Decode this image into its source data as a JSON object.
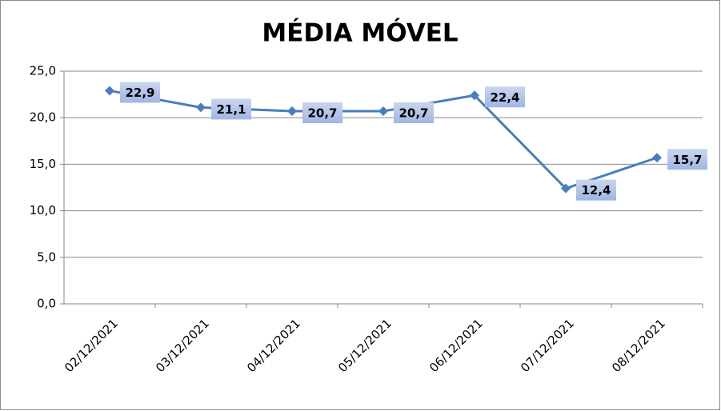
{
  "chart_data": {
    "type": "line",
    "title": "MÉDIA MÓVEL",
    "categories": [
      "02/12/2021",
      "03/12/2021",
      "04/12/2021",
      "05/12/2021",
      "06/12/2021",
      "07/12/2021",
      "08/12/2021"
    ],
    "values": [
      22.9,
      21.1,
      20.7,
      20.7,
      22.4,
      12.4,
      15.7
    ],
    "value_labels": [
      "22,9",
      "21,1",
      "20,7",
      "20,7",
      "22,4",
      "12,4",
      "15,7"
    ],
    "color": "#4a7ebb",
    "ylim": [
      0,
      25
    ],
    "yticks": [
      {
        "value": 0,
        "label": "0,0"
      },
      {
        "value": 5,
        "label": "5,0"
      },
      {
        "value": 10,
        "label": "10,0"
      },
      {
        "value": 15,
        "label": "15,0"
      },
      {
        "value": 20,
        "label": "20,0"
      },
      {
        "value": 25,
        "label": "25,0"
      }
    ],
    "grid": true
  }
}
